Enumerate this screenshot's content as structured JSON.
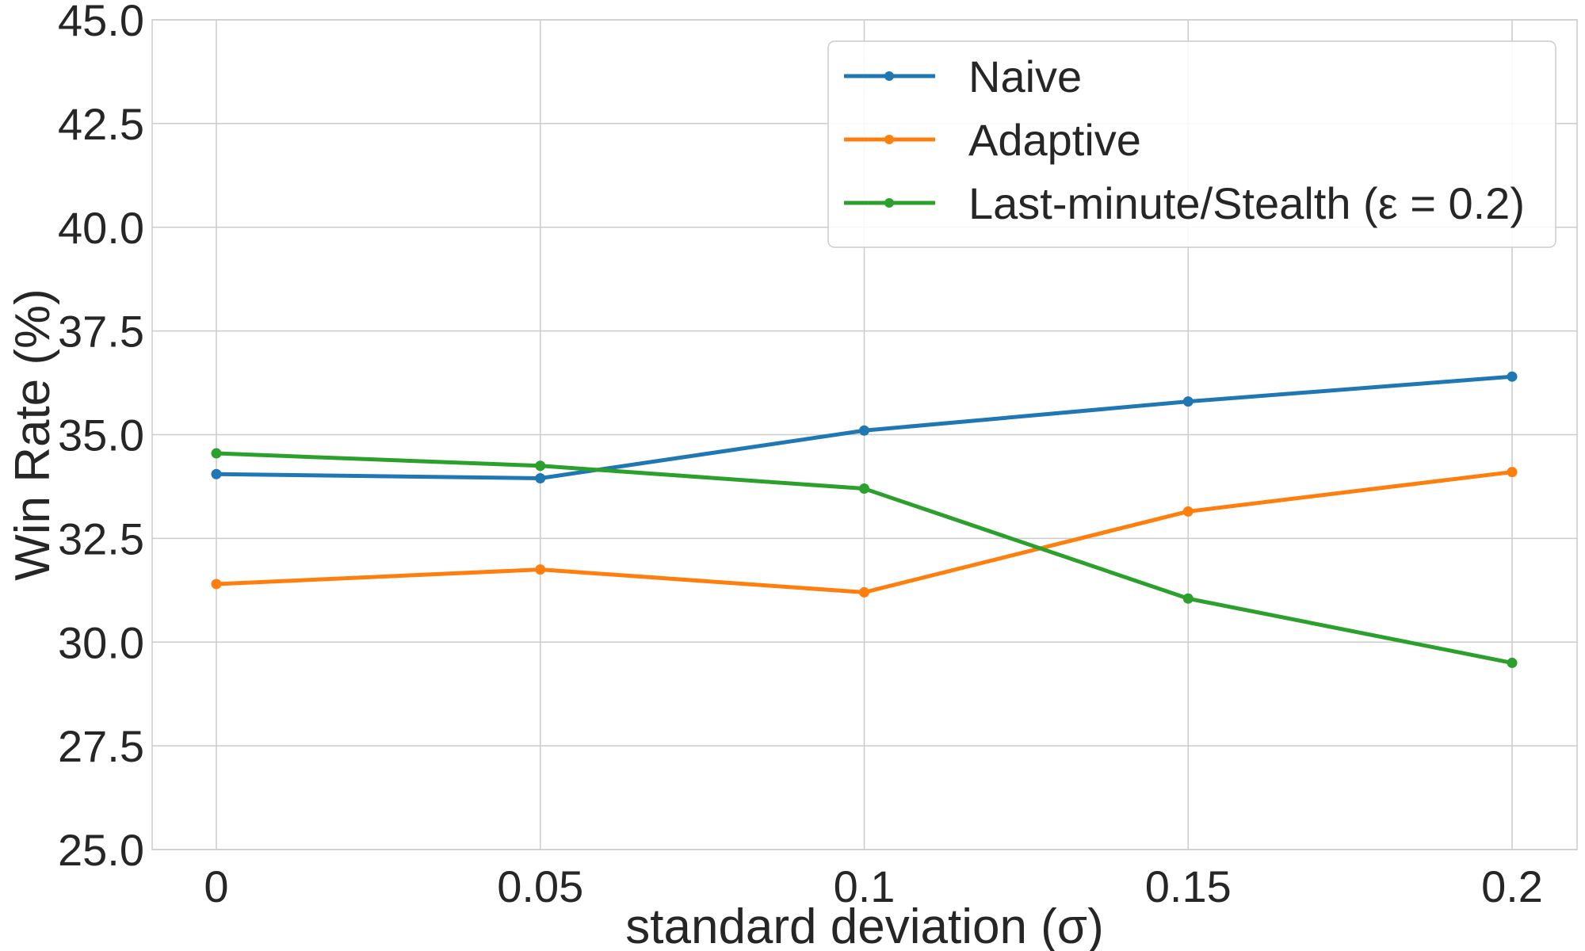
{
  "chart_data": {
    "type": "line",
    "x": [
      "0",
      "0.05",
      "0.1",
      "0.15",
      "0.2"
    ],
    "xlabel": "standard deviation (σ)",
    "ylabel": "Win Rate (%)",
    "ylim": [
      25.0,
      45.0
    ],
    "yticks": [
      "25.0",
      "27.5",
      "30.0",
      "32.5",
      "35.0",
      "37.5",
      "40.0",
      "42.5",
      "45.0"
    ],
    "grid": true,
    "legend_position": "top-right",
    "series": [
      {
        "name": "Naive",
        "color": "#1f77b4",
        "values": [
          34.05,
          33.95,
          35.1,
          35.8,
          36.4
        ]
      },
      {
        "name": "Adaptive",
        "color": "#ff7f0e",
        "values": [
          31.4,
          31.75,
          31.2,
          33.15,
          34.1
        ]
      },
      {
        "name": "Last-minute/Stealth (ε = 0.2)",
        "color": "#2ca02c",
        "values": [
          34.55,
          34.25,
          33.7,
          31.05,
          29.5
        ]
      }
    ]
  }
}
